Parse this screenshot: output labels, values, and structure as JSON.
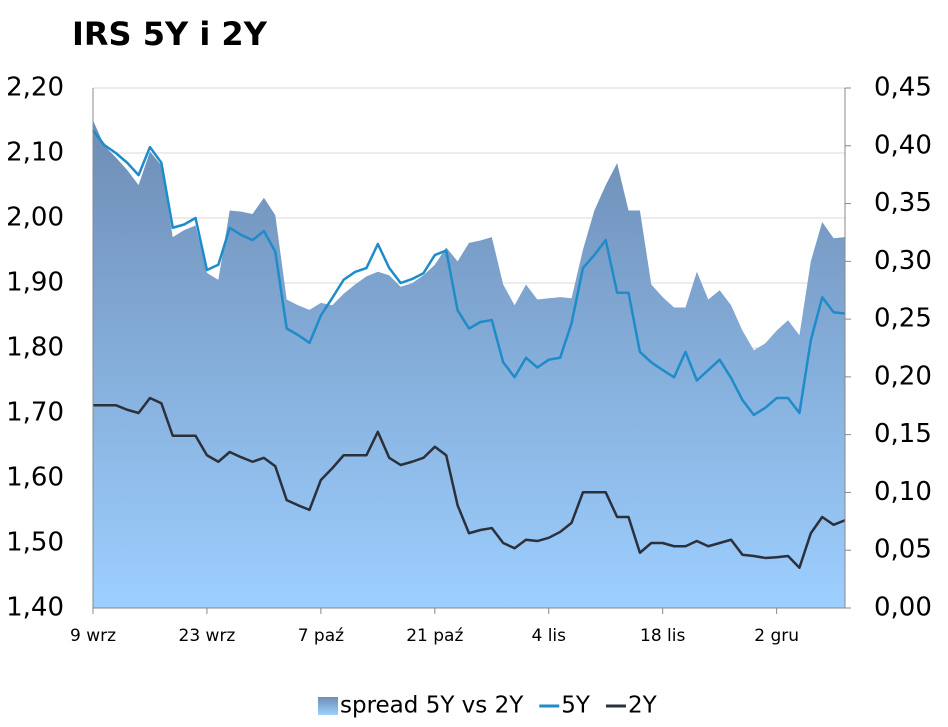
{
  "chart_data": {
    "type": "area-line",
    "title": "IRS 5Y i 2Y",
    "categories": [
      "9 wrz",
      null,
      null,
      null,
      null,
      null,
      null,
      null,
      null,
      null,
      "23 wrz",
      null,
      null,
      null,
      null,
      null,
      null,
      null,
      null,
      null,
      "7 paź",
      null,
      null,
      null,
      null,
      null,
      null,
      null,
      null,
      null,
      "21 paź",
      null,
      null,
      null,
      null,
      null,
      null,
      null,
      null,
      null,
      "4 lis",
      null,
      null,
      null,
      null,
      null,
      null,
      null,
      null,
      null,
      "18 lis",
      null,
      null,
      null,
      null,
      null,
      null,
      null,
      null,
      null,
      "2 gru",
      null,
      null,
      null,
      null,
      null,
      null
    ],
    "series": [
      {
        "name": "spread 5Y vs 2Y",
        "kind": "area",
        "axis": "y2",
        "color": "#7a9cc6",
        "values": [
          0.422,
          0.4,
          0.39,
          0.379,
          0.366,
          0.395,
          0.383,
          0.321,
          0.327,
          0.331,
          0.29,
          0.284,
          0.344,
          0.343,
          0.341,
          0.355,
          0.34,
          0.267,
          0.262,
          0.258,
          0.264,
          0.262,
          0.272,
          0.28,
          0.287,
          0.291,
          0.288,
          0.278,
          0.281,
          0.288,
          0.297,
          0.312,
          0.3,
          0.316,
          0.318,
          0.321,
          0.28,
          0.262,
          0.28,
          0.267,
          0.268,
          0.269,
          0.268,
          0.31,
          0.344,
          0.366,
          0.385,
          0.344,
          0.344,
          0.28,
          0.269,
          0.26,
          0.26,
          0.291,
          0.267,
          0.275,
          0.262,
          0.24,
          0.223,
          0.229,
          0.24,
          0.249,
          0.236,
          0.3,
          0.334,
          0.32,
          0.321
        ]
      },
      {
        "name": "5Y",
        "kind": "line",
        "color": "#1e8cc8",
        "values": [
          2.135,
          2.112,
          2.1,
          2.085,
          2.066,
          2.109,
          2.085,
          1.985,
          1.99,
          2.0,
          1.92,
          1.928,
          1.985,
          1.974,
          1.966,
          1.98,
          1.948,
          1.83,
          1.82,
          1.808,
          1.85,
          1.877,
          1.905,
          1.917,
          1.923,
          1.96,
          1.923,
          1.9,
          1.906,
          1.915,
          1.943,
          1.95,
          1.858,
          1.83,
          1.84,
          1.843,
          1.778,
          1.755,
          1.785,
          1.77,
          1.782,
          1.785,
          1.838,
          1.923,
          1.943,
          1.966,
          1.885,
          1.885,
          1.794,
          1.778,
          1.766,
          1.755,
          1.794,
          1.75,
          1.766,
          1.782,
          1.754,
          1.72,
          1.697,
          1.708,
          1.723,
          1.723,
          1.7,
          1.812,
          1.878,
          1.855,
          1.853
        ]
      },
      {
        "name": "2Y",
        "kind": "line",
        "color": "#2b303b",
        "values": [
          1.712,
          1.712,
          1.712,
          1.705,
          1.7,
          1.723,
          1.715,
          1.665,
          1.665,
          1.665,
          1.635,
          1.625,
          1.64,
          1.632,
          1.625,
          1.631,
          1.618,
          1.566,
          1.558,
          1.551,
          1.597,
          1.615,
          1.635,
          1.635,
          1.635,
          1.671,
          1.631,
          1.62,
          1.625,
          1.631,
          1.648,
          1.635,
          1.558,
          1.515,
          1.52,
          1.523,
          1.5,
          1.492,
          1.505,
          1.503,
          1.508,
          1.517,
          1.531,
          1.578,
          1.578,
          1.578,
          1.54,
          1.54,
          1.485,
          1.5,
          1.5,
          1.495,
          1.495,
          1.503,
          1.495,
          1.5,
          1.505,
          1.482,
          1.48,
          1.477,
          1.478,
          1.48,
          1.462,
          1.515,
          1.54,
          1.528,
          1.535
        ]
      }
    ],
    "ylim": [
      1.4,
      2.2
    ],
    "yticks": [
      {
        "value": 1.4,
        "label": "1,40"
      },
      {
        "value": 1.5,
        "label": "1,50"
      },
      {
        "value": 1.6,
        "label": "1,60"
      },
      {
        "value": 1.7,
        "label": "1,70"
      },
      {
        "value": 1.8,
        "label": "1,80"
      },
      {
        "value": 1.9,
        "label": "1,90"
      },
      {
        "value": 2.0,
        "label": "2,00"
      },
      {
        "value": 2.1,
        "label": "2,10"
      },
      {
        "value": 2.2,
        "label": "2,20"
      }
    ],
    "y2lim": [
      0,
      0.45
    ],
    "y2ticks": [
      {
        "value": 0,
        "label": "0,00"
      },
      {
        "value": 0.05,
        "label": "0,05"
      },
      {
        "value": 0.1,
        "label": "0,10"
      },
      {
        "value": 0.15,
        "label": "0,15"
      },
      {
        "value": 0.2,
        "label": "0,20"
      },
      {
        "value": 0.25,
        "label": "0,25"
      },
      {
        "value": 0.3,
        "label": "0,30"
      },
      {
        "value": 0.35,
        "label": "0,35"
      },
      {
        "value": 0.4,
        "label": "0,40"
      },
      {
        "value": 0.45,
        "label": "0,45"
      }
    ],
    "grid": true,
    "legend": "bottom"
  }
}
